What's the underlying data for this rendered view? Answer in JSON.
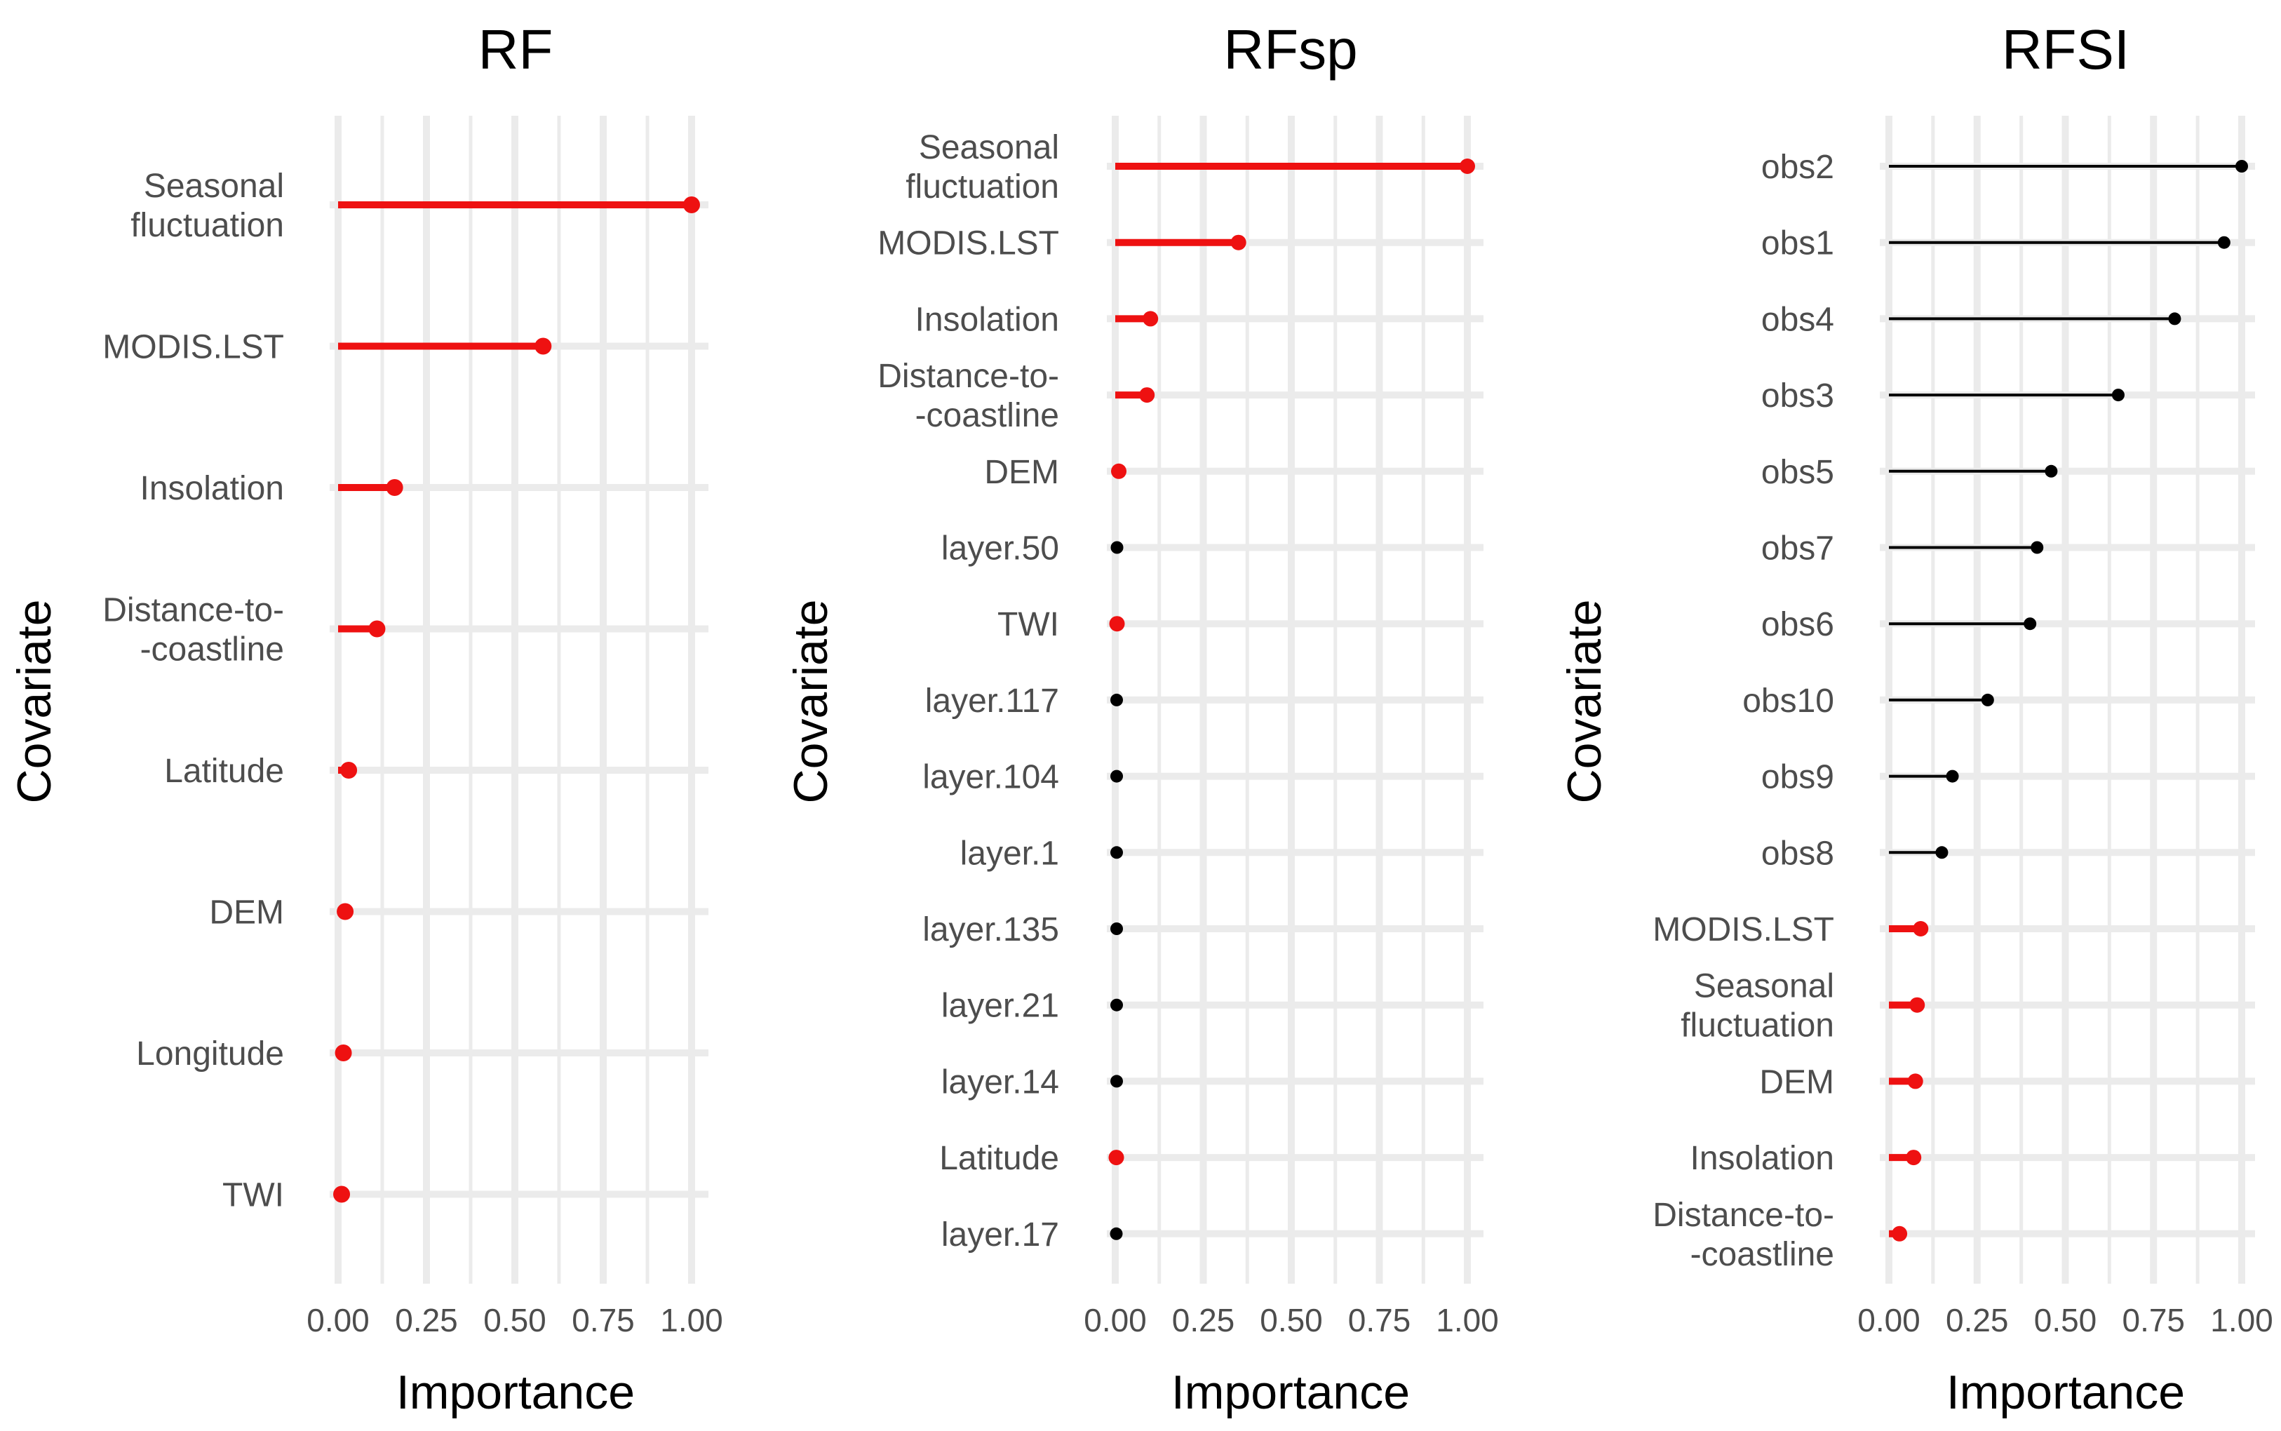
{
  "colors": {
    "highlight": "#ee1111",
    "default": "#000000",
    "grid": "#ebebeb",
    "tick_text": "#4d4d4d"
  },
  "chart_data": [
    {
      "type": "lollipop",
      "title": "RF",
      "xlabel": "Importance",
      "ylabel": "Covariate",
      "xlim": [
        0,
        1
      ],
      "xticks": [
        "0.00",
        "0.25",
        "0.50",
        "0.75",
        "1.00"
      ],
      "grid": true,
      "categories": [
        {
          "label": [
            "Seasonal",
            "fluctuation"
          ],
          "value": 1.0,
          "highlight": true
        },
        {
          "label": [
            "MODIS.LST"
          ],
          "value": 0.58,
          "highlight": true
        },
        {
          "label": [
            "Insolation"
          ],
          "value": 0.16,
          "highlight": true
        },
        {
          "label": [
            "Distance-to-",
            "-coastline"
          ],
          "value": 0.11,
          "highlight": true
        },
        {
          "label": [
            "Latitude"
          ],
          "value": 0.03,
          "highlight": true
        },
        {
          "label": [
            "DEM"
          ],
          "value": 0.02,
          "highlight": true
        },
        {
          "label": [
            "Longitude"
          ],
          "value": 0.015,
          "highlight": true
        },
        {
          "label": [
            "TWI"
          ],
          "value": 0.01,
          "highlight": true
        }
      ]
    },
    {
      "type": "lollipop",
      "title": "RFsp",
      "xlabel": "Importance",
      "ylabel": "Covariate",
      "xlim": [
        0,
        1
      ],
      "xticks": [
        "0.00",
        "0.25",
        "0.50",
        "0.75",
        "1.00"
      ],
      "grid": true,
      "categories": [
        {
          "label": [
            "Seasonal",
            "fluctuation"
          ],
          "value": 1.0,
          "highlight": true
        },
        {
          "label": [
            "MODIS.LST"
          ],
          "value": 0.35,
          "highlight": true
        },
        {
          "label": [
            "Insolation"
          ],
          "value": 0.1,
          "highlight": true
        },
        {
          "label": [
            "Distance-to-",
            "-coastline"
          ],
          "value": 0.09,
          "highlight": true
        },
        {
          "label": [
            "DEM"
          ],
          "value": 0.01,
          "highlight": true
        },
        {
          "label": [
            "layer.50"
          ],
          "value": 0.005,
          "highlight": false
        },
        {
          "label": [
            "TWI"
          ],
          "value": 0.005,
          "highlight": true
        },
        {
          "label": [
            "layer.117"
          ],
          "value": 0.004,
          "highlight": false
        },
        {
          "label": [
            "layer.104"
          ],
          "value": 0.004,
          "highlight": false
        },
        {
          "label": [
            "layer.1"
          ],
          "value": 0.004,
          "highlight": false
        },
        {
          "label": [
            "layer.135"
          ],
          "value": 0.004,
          "highlight": false
        },
        {
          "label": [
            "layer.21"
          ],
          "value": 0.004,
          "highlight": false
        },
        {
          "label": [
            "layer.14"
          ],
          "value": 0.004,
          "highlight": false
        },
        {
          "label": [
            "Latitude"
          ],
          "value": 0.003,
          "highlight": true
        },
        {
          "label": [
            "layer.17"
          ],
          "value": 0.003,
          "highlight": false
        }
      ]
    },
    {
      "type": "lollipop",
      "title": "RFSI",
      "xlabel": "Importance",
      "ylabel": "Covariate",
      "xlim": [
        0,
        1
      ],
      "xticks": [
        "0.00",
        "0.25",
        "0.50",
        "0.75",
        "1.00"
      ],
      "grid": true,
      "categories": [
        {
          "label": [
            "obs2"
          ],
          "value": 1.0,
          "highlight": false
        },
        {
          "label": [
            "obs1"
          ],
          "value": 0.95,
          "highlight": false
        },
        {
          "label": [
            "obs4"
          ],
          "value": 0.81,
          "highlight": false
        },
        {
          "label": [
            "obs3"
          ],
          "value": 0.65,
          "highlight": false
        },
        {
          "label": [
            "obs5"
          ],
          "value": 0.46,
          "highlight": false
        },
        {
          "label": [
            "obs7"
          ],
          "value": 0.42,
          "highlight": false
        },
        {
          "label": [
            "obs6"
          ],
          "value": 0.4,
          "highlight": false
        },
        {
          "label": [
            "obs10"
          ],
          "value": 0.28,
          "highlight": false
        },
        {
          "label": [
            "obs9"
          ],
          "value": 0.18,
          "highlight": false
        },
        {
          "label": [
            "obs8"
          ],
          "value": 0.15,
          "highlight": false
        },
        {
          "label": [
            "MODIS.LST"
          ],
          "value": 0.09,
          "highlight": true
        },
        {
          "label": [
            "Seasonal",
            "fluctuation"
          ],
          "value": 0.08,
          "highlight": true
        },
        {
          "label": [
            "DEM"
          ],
          "value": 0.075,
          "highlight": true
        },
        {
          "label": [
            "Insolation"
          ],
          "value": 0.07,
          "highlight": true
        },
        {
          "label": [
            "Distance-to-",
            "-coastline"
          ],
          "value": 0.03,
          "highlight": true
        }
      ]
    }
  ]
}
